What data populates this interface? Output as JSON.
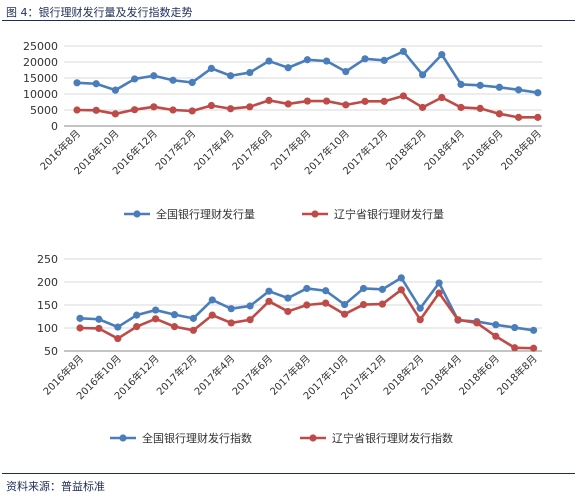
{
  "figure_title": "图 4：银行理财发行量及发行指数走势",
  "source": "资料来源：普益标准",
  "colors": {
    "series1": "#4a7ebb",
    "series2": "#be4b48",
    "grid": "#d9d9d9",
    "axis": "#888888",
    "rule": "#1f2d5a"
  },
  "chart_data": [
    {
      "type": "line",
      "title": "",
      "xlabel": "",
      "ylabel": "",
      "ylim": [
        0,
        25000
      ],
      "yticks": [
        0,
        5000,
        10000,
        15000,
        20000,
        25000
      ],
      "grid": true,
      "legend_position": "bottom",
      "categories": [
        "2016年8月",
        "2016年9月",
        "2016年10月",
        "2016年11月",
        "2016年12月",
        "2017年1月",
        "2017年2月",
        "2017年3月",
        "2017年4月",
        "2017年5月",
        "2017年6月",
        "2017年7月",
        "2017年8月",
        "2017年9月",
        "2017年10月",
        "2017年11月",
        "2017年12月",
        "2018年1月",
        "2018年2月",
        "2018年3月",
        "2018年4月",
        "2018年5月",
        "2018年6月",
        "2018年7月",
        "2018年8月"
      ],
      "tick_labels": [
        "2016年8月",
        "2016年10月",
        "2016年12月",
        "2017年2月",
        "2017年4月",
        "2017年6月",
        "2017年8月",
        "2017年10月",
        "2017年12月",
        "2018年2月",
        "2018年4月",
        "2018年6月",
        "2018年8月"
      ],
      "series": [
        {
          "name": "全国银行理财发行量",
          "values": [
            13500,
            13200,
            11200,
            14700,
            15700,
            14300,
            13600,
            18000,
            15700,
            16700,
            20300,
            18200,
            20700,
            20300,
            17000,
            21000,
            20500,
            23300,
            16000,
            22300,
            13000,
            12700,
            12100,
            11300,
            10400
          ]
        },
        {
          "name": "辽宁省银行理财发行量",
          "values": [
            5000,
            4900,
            3800,
            5100,
            6000,
            5000,
            4700,
            6400,
            5400,
            6000,
            8000,
            6900,
            7800,
            7800,
            6600,
            7700,
            7700,
            9400,
            5800,
            8900,
            5800,
            5500,
            3800,
            2700,
            2700
          ]
        }
      ]
    },
    {
      "type": "line",
      "title": "",
      "xlabel": "",
      "ylabel": "",
      "ylim": [
        50,
        250
      ],
      "yticks": [
        50,
        100,
        150,
        200,
        250
      ],
      "grid": true,
      "legend_position": "bottom",
      "categories": [
        "2016年8月",
        "2016年9月",
        "2016年10月",
        "2016年11月",
        "2016年12月",
        "2017年1月",
        "2017年2月",
        "2017年3月",
        "2017年4月",
        "2017年5月",
        "2017年6月",
        "2017年7月",
        "2017年8月",
        "2017年9月",
        "2017年10月",
        "2017年11月",
        "2017年12月",
        "2018年1月",
        "2018年2月",
        "2018年3月",
        "2018年4月",
        "2018年5月",
        "2018年6月",
        "2018年7月",
        "2018年8月"
      ],
      "tick_labels": [
        "2016年8月",
        "2016年10月",
        "2016年12月",
        "2017年2月",
        "2017年4月",
        "2017年6月",
        "2017年8月",
        "2017年10月",
        "2017年12月",
        "2018年2月",
        "2018年4月",
        "2018年6月",
        "2018年8月"
      ],
      "series": [
        {
          "name": "全国银行理财发行指数",
          "values": [
            121,
            119,
            102,
            128,
            139,
            129,
            121,
            161,
            142,
            148,
            180,
            165,
            186,
            181,
            151,
            186,
            184,
            209,
            143,
            198,
            117,
            114,
            107,
            101,
            95
          ]
        },
        {
          "name": "辽宁省银行理财发行指数",
          "values": [
            100,
            99,
            77,
            103,
            120,
            103,
            95,
            128,
            111,
            118,
            158,
            136,
            150,
            154,
            130,
            151,
            152,
            183,
            118,
            176,
            118,
            111,
            82,
            57,
            56
          ]
        }
      ]
    }
  ]
}
